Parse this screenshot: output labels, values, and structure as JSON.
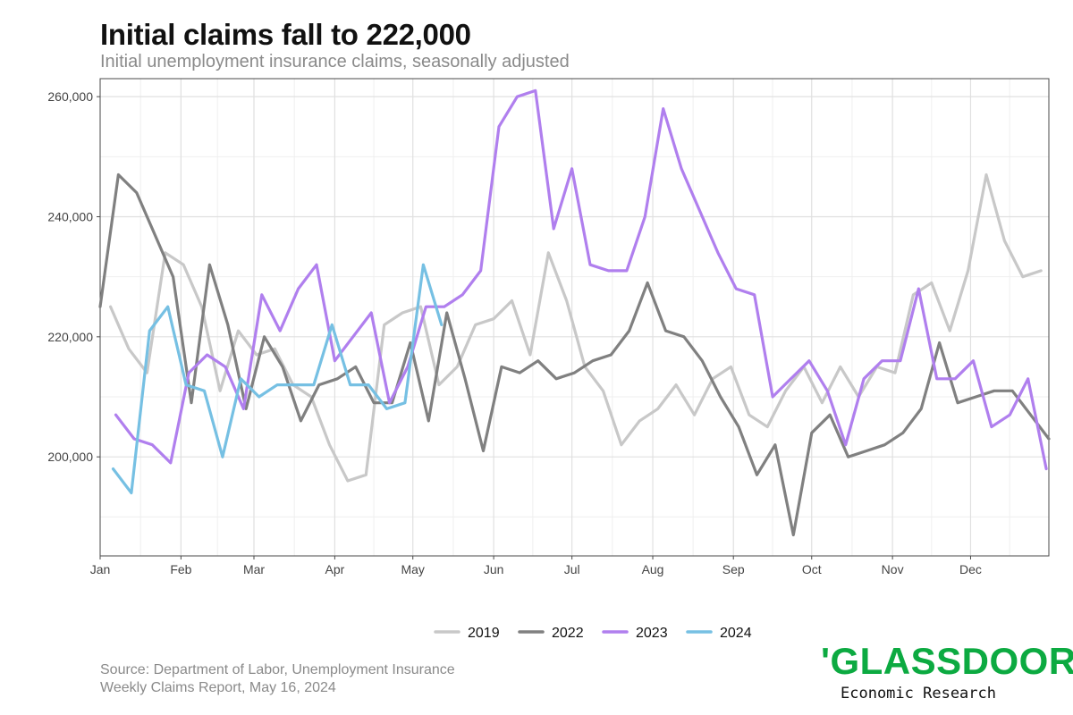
{
  "header": {
    "title": "Initial claims fall to 222,000",
    "subtitle": "Initial unemployment insurance claims, seasonally adjusted"
  },
  "footer": {
    "source_line1": "Source: Department of Labor, Unemployment Insurance",
    "source_line2": "Weekly Claims Report, May 16, 2024"
  },
  "brand": {
    "name": "'GLASSDOOR",
    "tm": "™",
    "tagline": "Economic Research",
    "color": "#0caa41"
  },
  "chart_data": {
    "type": "line",
    "title": "Initial claims fall to 222,000",
    "subtitle": "Initial unemployment insurance claims, seasonally adjusted",
    "xlabel": "",
    "ylabel": "",
    "x_unit": "week of year",
    "xlim": [
      0,
      52
    ],
    "ylim": [
      183500,
      263000
    ],
    "y_ticks": [
      200000,
      220000,
      240000,
      260000
    ],
    "y_tick_labels": [
      "200,000",
      "220,000",
      "240,000",
      "260,000"
    ],
    "x_ticks": [
      0,
      4.43,
      8.43,
      12.86,
      17.14,
      21.57,
      25.86,
      30.29,
      34.71,
      39,
      43.43,
      47.71
    ],
    "x_tick_labels": [
      "Jan",
      "Feb",
      "Mar",
      "Apr",
      "May",
      "Jun",
      "Jul",
      "Aug",
      "Sep",
      "Oct",
      "Nov",
      "Dec"
    ],
    "grid": true,
    "legend_position": "bottom-center",
    "series": [
      {
        "name": "2019",
        "color": "#c8c8c8",
        "x": [
          0.57,
          1.57,
          2.57,
          3.57,
          4.57,
          5.57,
          6.57,
          7.57,
          8.57,
          9.57,
          10.57,
          11.57,
          12.57,
          13.57,
          14.57,
          15.57,
          16.57,
          17.57,
          18.57,
          19.57,
          20.57,
          21.57,
          22.57,
          23.57,
          24.57,
          25.57,
          26.57,
          27.57,
          28.57,
          29.57,
          30.57,
          31.57,
          32.57,
          33.57,
          34.57,
          35.57,
          36.57,
          37.57,
          38.57,
          39.57,
          40.57,
          41.57,
          42.57,
          43.57,
          44.57,
          45.57,
          46.57,
          47.57,
          48.57,
          49.57,
          50.57,
          51.57
        ],
        "values": [
          225000,
          218000,
          214000,
          234000,
          232000,
          225000,
          211000,
          221000,
          217000,
          218000,
          212000,
          210000,
          202000,
          196000,
          197000,
          222000,
          224000,
          225000,
          212000,
          215000,
          222000,
          223000,
          226000,
          217000,
          234000,
          226000,
          215000,
          211000,
          202000,
          206000,
          208000,
          212000,
          207000,
          213000,
          215000,
          207000,
          205000,
          211000,
          215000,
          209000,
          215000,
          210000,
          215000,
          214000,
          227000,
          229000,
          221000,
          231000,
          247000,
          236000,
          230000,
          231000
        ]
      },
      {
        "name": "2022",
        "color": "#808080",
        "x": [
          0,
          1,
          2,
          3,
          4,
          5,
          6,
          7,
          8,
          9,
          10,
          11,
          12,
          13,
          14,
          15,
          16,
          17,
          18,
          19,
          20,
          21,
          22,
          23,
          24,
          25,
          26,
          27,
          28,
          29,
          30,
          31,
          32,
          33,
          34,
          35,
          36,
          37,
          38,
          39,
          40,
          41,
          42,
          43,
          44,
          45,
          46,
          47,
          48,
          49,
          50,
          51,
          52
        ],
        "values": [
          225000,
          247000,
          244000,
          237000,
          230000,
          209000,
          232000,
          222000,
          208000,
          220000,
          215000,
          206000,
          212000,
          213000,
          215000,
          209000,
          209000,
          219000,
          206000,
          224000,
          213000,
          201000,
          215000,
          214000,
          216000,
          213000,
          214000,
          216000,
          217000,
          221000,
          229000,
          221000,
          220000,
          216000,
          210000,
          205000,
          197000,
          202000,
          187000,
          204000,
          207000,
          200000,
          201000,
          202000,
          204000,
          208000,
          219000,
          209000,
          210000,
          211000,
          211000,
          207000,
          203000
        ]
      },
      {
        "name": "2023",
        "color": "#b07fee",
        "x": [
          0.86,
          1.86,
          2.86,
          3.86,
          4.86,
          5.86,
          6.86,
          7.86,
          8.86,
          9.86,
          10.86,
          11.86,
          12.86,
          13.86,
          14.86,
          15.86,
          16.86,
          17.86,
          18.86,
          19.86,
          20.86,
          21.86,
          22.86,
          23.86,
          24.86,
          25.86,
          26.86,
          27.86,
          28.86,
          29.86,
          30.86,
          31.86,
          32.86,
          33.86,
          34.86,
          35.86,
          36.86,
          37.86,
          38.86,
          39.86,
          40.86,
          41.86,
          42.86,
          43.86,
          44.86,
          45.86,
          46.86,
          47.86,
          48.86,
          49.86,
          50.86,
          51.86
        ],
        "values": [
          207000,
          203000,
          202000,
          199000,
          214000,
          217000,
          215000,
          208000,
          227000,
          221000,
          228000,
          232000,
          216000,
          220000,
          224000,
          209000,
          215000,
          225000,
          225000,
          227000,
          231000,
          255000,
          260000,
          261000,
          238000,
          248000,
          232000,
          231000,
          231000,
          240000,
          258000,
          248000,
          241000,
          234000,
          228000,
          227000,
          210000,
          213000,
          216000,
          211000,
          202000,
          213000,
          216000,
          216000,
          228000,
          213000,
          213000,
          216000,
          205000,
          207000,
          213000,
          198000
        ]
      },
      {
        "name": "2024",
        "color": "#76c0e3",
        "x": [
          0.71,
          1.71,
          2.71,
          3.71,
          4.71,
          5.71,
          6.71,
          7.71,
          8.71,
          9.71,
          10.71,
          11.71,
          12.71,
          13.71,
          14.71,
          15.71,
          16.71,
          17.71,
          18.71
        ],
        "values": [
          198000,
          194000,
          221000,
          225000,
          212000,
          211000,
          200000,
          213000,
          210000,
          212000,
          212000,
          212000,
          222000,
          212000,
          212000,
          208000,
          209000,
          232000,
          222000
        ]
      }
    ]
  }
}
